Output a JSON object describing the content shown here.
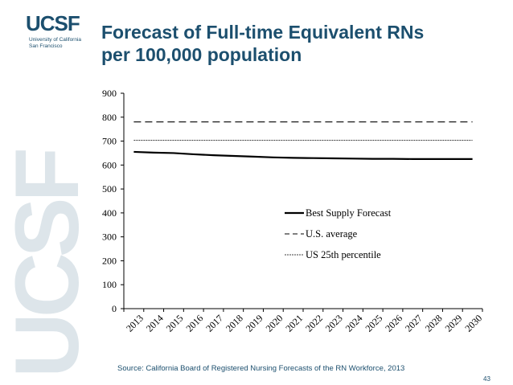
{
  "colors": {
    "brand": "#1c4f6e",
    "watermark": "#dde5ea",
    "logo": "#1c4f6e"
  },
  "logo": {
    "wordmark": "UCSF",
    "line1": "University of California",
    "line2": "San Francisco"
  },
  "watermark": "UCSF",
  "title": {
    "line1": "Forecast of Full-time Equivalent RNs",
    "line2": "per 100,000 population"
  },
  "source": "Source: California Board of Registered Nursing Forecasts of the RN Workforce, 2013",
  "page_number": "43",
  "chart_data": {
    "type": "line",
    "x": [
      2013,
      2014,
      2015,
      2016,
      2017,
      2018,
      2019,
      2020,
      2021,
      2022,
      2023,
      2024,
      2025,
      2026,
      2027,
      2028,
      2029,
      2030
    ],
    "xlabel": "",
    "ylabel": "",
    "ylim": [
      0,
      900
    ],
    "yticks": [
      0,
      100,
      200,
      300,
      400,
      500,
      600,
      700,
      800,
      900
    ],
    "grid": false,
    "legend_position": "center-right",
    "series": [
      {
        "name": "Best Supply Forecast",
        "style": "solid",
        "values": [
          655,
          652,
          650,
          645,
          641,
          638,
          635,
          632,
          630,
          629,
          628,
          627,
          626,
          626,
          625,
          625,
          625,
          625
        ]
      },
      {
        "name": "U.S. average",
        "style": "dashed",
        "values": [
          780,
          780,
          780,
          780,
          780,
          780,
          780,
          780,
          780,
          780,
          780,
          780,
          780,
          780,
          780,
          780,
          780,
          780
        ]
      },
      {
        "name": "US 25th percentile",
        "style": "dotted",
        "values": [
          704,
          704,
          704,
          704,
          704,
          704,
          704,
          704,
          704,
          704,
          704,
          704,
          704,
          704,
          704,
          704,
          704,
          704
        ]
      }
    ]
  }
}
